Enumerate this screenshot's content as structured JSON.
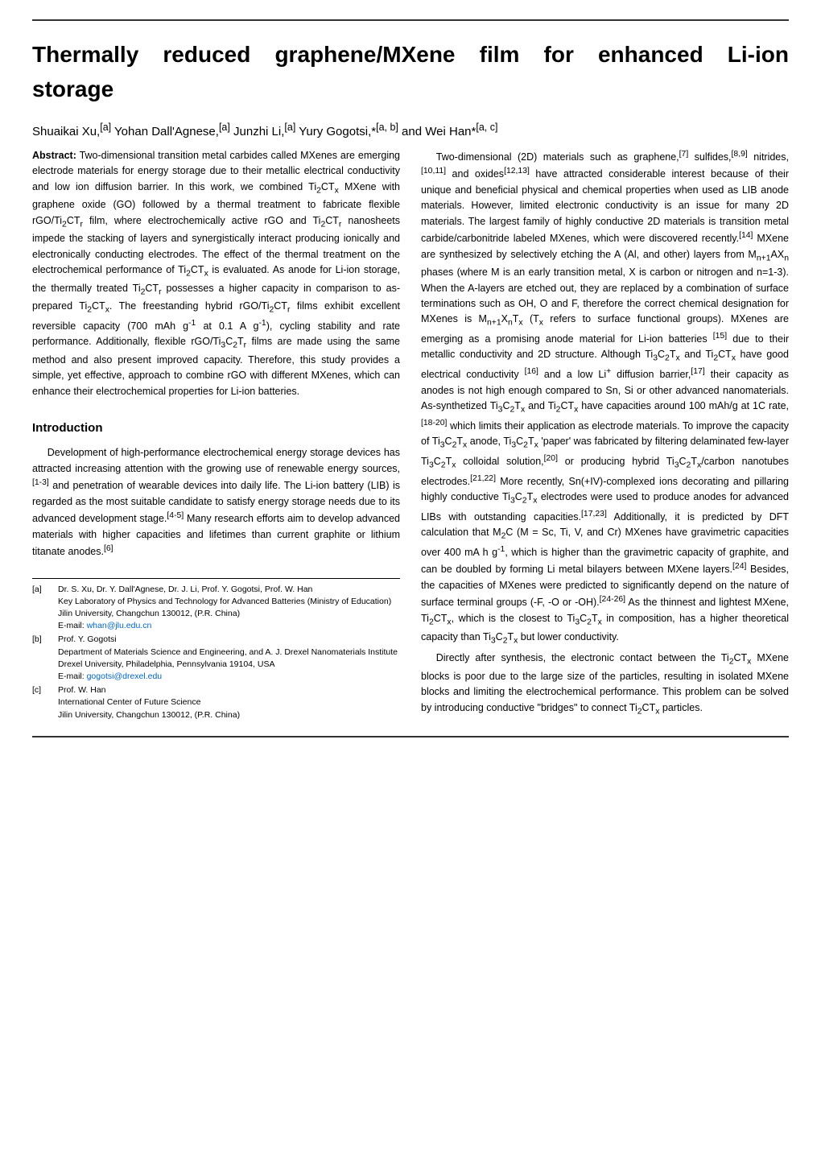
{
  "title_line1": "Thermally reduced graphene/MXene film for enhanced Li-ion",
  "title_line2": "storage",
  "authors_html": "Shuaikai Xu,<sup>[a]</sup> Yohan Dall'Agnese,<sup>[a]</sup> Junzhi Li,<sup>[a]</sup> Yury Gogotsi,*<sup>[a, b]</sup> and Wei Han*<sup>[a, c]</sup>",
  "abstract_label": "Abstract:",
  "abstract_html": " Two-dimensional transition metal carbides called MXenes are emerging electrode materials for energy storage due to their metallic electrical conductivity and low ion diffusion barrier. In this work, we combined Ti<sub>2</sub>CT<sub>x</sub> MXene with graphene oxide (GO) followed by a thermal treatment to fabricate flexible rGO/Ti<sub>2</sub>CT<sub>r</sub> film, where electrochemically active rGO and Ti<sub>2</sub>CT<sub>r</sub> nanosheets impede the stacking of layers and synergistically interact producing ionically and electronically conducting electrodes. The effect of the thermal treatment on the electrochemical performance of Ti<sub>2</sub>CT<sub>x</sub> is evaluated. As anode for Li-ion storage, the thermally treated Ti<sub>2</sub>CT<sub>r</sub> possesses a higher capacity in comparison to as-prepared Ti<sub>2</sub>CT<sub>x</sub>. The freestanding hybrid rGO/Ti<sub>2</sub>CT<sub>r</sub> films exhibit excellent reversible capacity (700 mAh g<sup>-1</sup> at 0.1 A g<sup>-1</sup>), cycling stability and rate performance. Additionally, flexible rGO/Ti<sub>3</sub>C<sub>2</sub>T<sub>r</sub> films are made using the same method and also present improved capacity. Therefore, this study provides a simple, yet effective, approach to combine rGO with different MXenes, which can enhance their electrochemical properties for Li-ion batteries.",
  "intro_heading": "Introduction",
  "intro_p1_html": "Development of high-performance electrochemical energy storage devices has attracted increasing attention with the growing use of renewable energy sources,<sup>[1-3]</sup> and penetration of wearable devices into daily life. The Li-ion battery (LIB) is regarded as the most suitable candidate to satisfy energy storage needs due to its advanced development stage.<sup>[4-5]</sup> Many research efforts aim to develop advanced materials with higher capacities and lifetimes than current graphite or lithium titanate anodes.<sup>[6]</sup>",
  "affil": {
    "a": {
      "tag": "[a]",
      "l1": "Dr. S. Xu, Dr. Y. Dall'Agnese, Dr. J. Li, Prof. Y. Gogotsi, Prof. W. Han",
      "l2": "Key Laboratory of Physics and Technology for Advanced Batteries (Ministry of Education)",
      "l3": "Jilin University, Changchun 130012, (P.R. China)",
      "l4_pre": "E-mail: ",
      "l4_link": "whan@jlu.edu.cn"
    },
    "b": {
      "tag": "[b]",
      "l1": "Prof. Y. Gogotsi",
      "l2": "Department of Materials Science and Engineering, and A. J. Drexel Nanomaterials Institute",
      "l3": "Drexel University, Philadelphia, Pennsylvania 19104, USA",
      "l4_pre": "E-mail: ",
      "l4_link": "gogotsi@drexel.edu"
    },
    "c": {
      "tag": "[c]",
      "l1": "Prof. W. Han",
      "l2": "International Center of Future Science",
      "l3": "Jilin University, Changchun 130012, (P.R. China)"
    }
  },
  "col2_p1_html": "Two-dimensional (2D) materials such as graphene,<sup>[7]</sup> sulfides,<sup>[8,9]</sup> nitrides,<sup>[10,11]</sup> and oxides<sup>[12,13]</sup> have attracted considerable interest because of their unique and beneficial physical and chemical properties when used as LIB anode materials. However, limited electronic conductivity is an issue for many 2D materials. The largest family of highly conductive 2D materials is transition metal carbide/carbonitride labeled MXenes, which were discovered recently.<sup>[14]</sup> MXene are synthesized by selectively etching the A (Al, and other) layers from M<sub>n+1</sub>AX<sub>n</sub> phases (where M is an early transition metal, X is carbon or nitrogen and n=1-3). When the A-layers are etched out, they are replaced by a combination of surface terminations such as OH, O and F, therefore the correct chemical designation for MXenes is M<sub>n+1</sub>X<sub>n</sub>T<sub>x</sub> (T<sub>x</sub> refers to surface functional groups). MXenes are emerging as a promising anode material for Li-ion batteries <sup>[15]</sup> due to their metallic conductivity and 2D structure. Although Ti<sub>3</sub>C<sub>2</sub>T<sub>x</sub> and Ti<sub>2</sub>CT<sub>x</sub> have good electrical conductivity <sup>[16]</sup> and a low Li<sup>+</sup> diffusion barrier,<sup>[17]</sup> their capacity as anodes is not high enough compared to Sn, Si or other advanced nanomaterials. As-synthetized Ti<sub>3</sub>C<sub>2</sub>T<sub>x</sub> and Ti<sub>2</sub>CT<sub>x</sub> have capacities around 100 mAh/g at 1C rate,<sup>[18-20]</sup> which limits their application as electrode materials. To improve the capacity of Ti<sub>3</sub>C<sub>2</sub>T<sub>x</sub> anode, Ti<sub>3</sub>C<sub>2</sub>T<sub>x</sub> 'paper' was fabricated by filtering delaminated few-layer Ti<sub>3</sub>C<sub>2</sub>T<sub>x</sub> colloidal solution,<sup>[20]</sup> or producing hybrid Ti<sub>3</sub>C<sub>2</sub>T<sub>x</sub>/carbon nanotubes electrodes.<sup>[21,22]</sup> More recently, Sn(+IV)-complexed ions decorating and pillaring highly conductive Ti<sub>3</sub>C<sub>2</sub>T<sub>x</sub> electrodes were used to produce anodes for advanced LIBs with outstanding capacities.<sup>[17,23]</sup> Additionally, it is predicted by DFT calculation that M<sub>2</sub>C (M = Sc, Ti, V, and Cr) MXenes have gravimetric capacities over 400 mA h g<sup>-1</sup>, which is higher than the gravimetric capacity of graphite, and can be doubled by forming Li metal bilayers between MXene layers.<sup>[24]</sup> Besides, the capacities of MXenes were predicted to significantly depend on the nature of surface terminal groups (-F, -O or -OH).<sup>[24-26]</sup> As the thinnest and lightest MXene, Ti<sub>2</sub>CT<sub>x</sub>, which is the closest to Ti<sub>3</sub>C<sub>2</sub>T<sub>x</sub> in composition, has a higher theoretical capacity than Ti<sub>3</sub>C<sub>2</sub>T<sub>x</sub> but lower conductivity.",
  "col2_p2_html": "Directly after synthesis, the electronic contact between the Ti<sub>2</sub>CT<sub>x</sub> MXene blocks is poor due to the large size of the particles, resulting in isolated MXene blocks and limiting the electrochemical performance. This problem can be solved by introducing conductive \"bridges\" to connect Ti<sub>2</sub>CT<sub>x</sub> particles."
}
